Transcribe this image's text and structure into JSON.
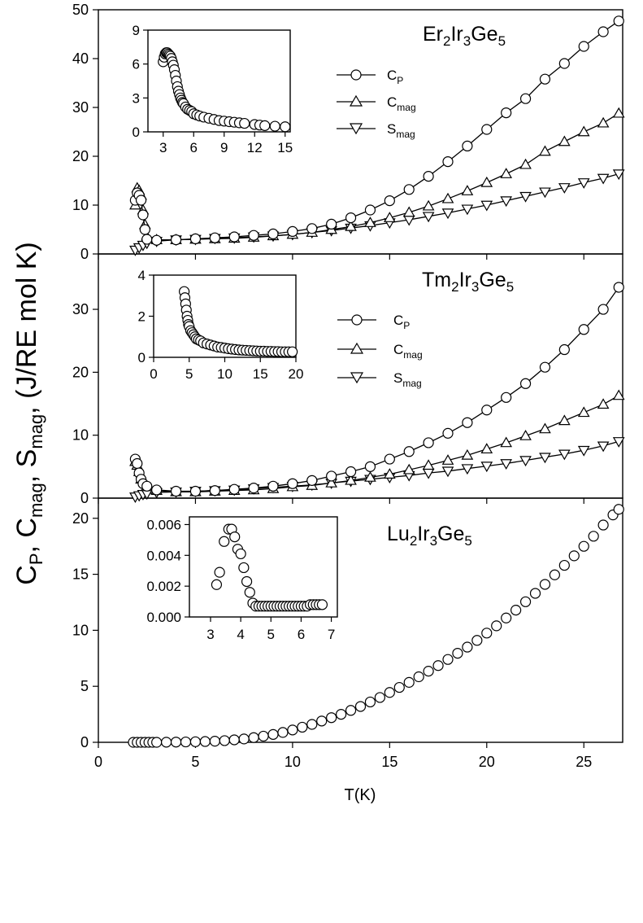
{
  "figure": {
    "y_axis_label": {
      "c": "C",
      "p": "P",
      "sep1": ", ",
      "c2": "C",
      "mag": "mag",
      "sep2": ", ",
      "s": "S",
      "mag2": "mag",
      "units": ", (J/RE mol K)"
    },
    "x_axis_label": "T(K)"
  },
  "legend": {
    "cp": "C",
    "cp_sub": "P",
    "cmag": "C",
    "cmag_sub": "mag",
    "smag": "S",
    "smag_sub": "mag"
  },
  "panels": {
    "er": {
      "title": {
        "a": "Er",
        "b": "2",
        "c": "Ir",
        "d": "3",
        "e": "Ge",
        "f": "5"
      }
    },
    "tm": {
      "title": {
        "a": "Tm",
        "b": "2",
        "c": "Ir",
        "d": "3",
        "e": "Ge",
        "f": "5"
      }
    },
    "lu": {
      "title": {
        "a": "Lu",
        "b": "2",
        "c": "Ir",
        "d": "3",
        "e": "Ge",
        "f": "5"
      }
    }
  },
  "chart_data": [
    {
      "type": "scatter",
      "panel": "Er2Ir3Ge5",
      "xlim": [
        0,
        27
      ],
      "ylim": [
        0,
        50
      ],
      "xticks": [
        0,
        5,
        10,
        15,
        20,
        25
      ],
      "yticks": [
        0,
        10,
        20,
        30,
        40,
        50
      ],
      "series": [
        {
          "name": "CP",
          "marker": "circle",
          "x": [
            1.9,
            2.0,
            2.1,
            2.2,
            2.3,
            2.4,
            2.5,
            3.0,
            4.0,
            5.0,
            6.0,
            7.0,
            8.0,
            9.0,
            10.0,
            11.0,
            12.0,
            13.0,
            14.0,
            15.0,
            16.0,
            17.0,
            18.0,
            19.0,
            20.0,
            21.0,
            22.0,
            23.0,
            24.0,
            25.0,
            26.0,
            26.8
          ],
          "y": [
            11.0,
            12.5,
            12.0,
            11.0,
            8.0,
            5.0,
            3.0,
            2.8,
            2.9,
            3.1,
            3.3,
            3.5,
            3.8,
            4.1,
            4.6,
            5.2,
            6.1,
            7.4,
            9.0,
            10.9,
            13.2,
            15.9,
            18.9,
            22.1,
            25.5,
            28.9,
            31.8,
            35.8,
            39.0,
            42.5,
            45.5,
            47.7
          ]
        },
        {
          "name": "Cmag",
          "marker": "triangle-up",
          "x": [
            1.9,
            2.0,
            2.1,
            2.2,
            2.3,
            2.4,
            2.5,
            3.0,
            4.0,
            5.0,
            6.0,
            7.0,
            8.0,
            9.0,
            10.0,
            11.0,
            12.0,
            13.0,
            14.0,
            15.0,
            16.0,
            17.0,
            18.0,
            19.0,
            20.0,
            21.0,
            22.0,
            23.0,
            24.0,
            25.0,
            26.0,
            26.8
          ],
          "y": [
            10.0,
            13.5,
            13.0,
            12.0,
            9.0,
            6.0,
            3.5,
            2.9,
            2.9,
            3.0,
            3.1,
            3.2,
            3.4,
            3.7,
            4.0,
            4.4,
            5.0,
            5.6,
            6.4,
            7.4,
            8.5,
            9.8,
            11.3,
            12.9,
            14.6,
            16.4,
            18.3,
            21.0,
            23.0,
            25.0,
            26.8,
            28.8
          ]
        },
        {
          "name": "Smag",
          "marker": "triangle-down",
          "x": [
            1.9,
            2.1,
            2.3,
            2.5,
            3.0,
            4.0,
            5.0,
            6.0,
            7.0,
            8.0,
            9.0,
            10.0,
            11.0,
            12.0,
            13.0,
            14.0,
            15.0,
            16.0,
            17.0,
            18.0,
            19.0,
            20.0,
            21.0,
            22.0,
            23.0,
            24.0,
            25.0,
            26.0,
            26.8
          ],
          "y": [
            0.8,
            1.3,
            1.8,
            2.2,
            2.6,
            2.9,
            3.0,
            3.2,
            3.3,
            3.5,
            3.7,
            4.0,
            4.4,
            4.8,
            5.3,
            5.8,
            6.4,
            7.0,
            7.7,
            8.4,
            9.2,
            10.0,
            10.9,
            11.8,
            12.7,
            13.6,
            14.6,
            15.5,
            16.4
          ]
        }
      ],
      "inset": {
        "type": "scatter",
        "xlim": [
          1.5,
          15.5
        ],
        "ylim": [
          0,
          9
        ],
        "xticks": [
          3,
          6,
          9,
          12,
          15
        ],
        "yticks": [
          0,
          3,
          6,
          9
        ],
        "x": [
          3.0,
          3.1,
          3.2,
          3.3,
          3.4,
          3.5,
          3.6,
          3.7,
          3.8,
          3.9,
          4.0,
          4.1,
          4.2,
          4.3,
          4.4,
          4.5,
          4.6,
          4.7,
          4.8,
          4.9,
          5.0,
          5.2,
          5.4,
          5.6,
          5.8,
          6.0,
          6.3,
          6.6,
          7.0,
          7.5,
          8.0,
          8.5,
          9.0,
          9.5,
          10.0,
          10.5,
          11.0,
          12.0,
          12.5,
          13.0,
          14.0,
          15.0
        ],
        "y": [
          6.2,
          6.6,
          6.9,
          7.0,
          7.0,
          6.9,
          6.8,
          6.7,
          6.5,
          6.2,
          5.9,
          5.5,
          5.0,
          4.5,
          4.0,
          3.6,
          3.3,
          3.0,
          2.8,
          2.6,
          2.5,
          2.2,
          2.0,
          1.9,
          1.8,
          1.6,
          1.5,
          1.4,
          1.3,
          1.2,
          1.1,
          1.0,
          0.95,
          0.9,
          0.85,
          0.8,
          0.75,
          0.65,
          0.6,
          0.55,
          0.5,
          0.45
        ]
      }
    },
    {
      "type": "scatter",
      "panel": "Tm2Ir3Ge5",
      "xlim": [
        0,
        27
      ],
      "ylim": [
        0,
        38.8
      ],
      "xticks": [
        0,
        5,
        10,
        15,
        20,
        25
      ],
      "yticks": [
        0,
        10,
        20,
        30
      ],
      "series": [
        {
          "name": "CP",
          "marker": "circle",
          "x": [
            1.9,
            2.0,
            2.1,
            2.2,
            2.3,
            2.5,
            3.0,
            4.0,
            5.0,
            6.0,
            7.0,
            8.0,
            9.0,
            10.0,
            11.0,
            12.0,
            13.0,
            14.0,
            15.0,
            16.0,
            17.0,
            18.0,
            19.0,
            20.0,
            21.0,
            22.0,
            23.0,
            24.0,
            25.0,
            26.0,
            26.8
          ],
          "y": [
            6.2,
            5.5,
            4.0,
            3.0,
            2.3,
            1.9,
            1.3,
            1.1,
            1.1,
            1.2,
            1.4,
            1.6,
            1.9,
            2.3,
            2.8,
            3.5,
            4.2,
            5.0,
            6.2,
            7.4,
            8.8,
            10.3,
            12.0,
            14.0,
            16.0,
            18.2,
            20.8,
            23.6,
            26.8,
            30.0,
            33.5
          ]
        },
        {
          "name": "Cmag",
          "marker": "triangle-up",
          "x": [
            1.9,
            2.0,
            2.1,
            2.2,
            2.5,
            3.0,
            4.0,
            5.0,
            6.0,
            7.0,
            8.0,
            9.0,
            10.0,
            11.0,
            12.0,
            13.0,
            14.0,
            15.0,
            16.0,
            17.0,
            18.0,
            19.0,
            20.0,
            21.0,
            22.0,
            23.0,
            24.0,
            25.0,
            26.0,
            26.8
          ],
          "y": [
            5.8,
            5.2,
            4.2,
            3.0,
            1.8,
            1.2,
            1.0,
            1.0,
            1.1,
            1.2,
            1.3,
            1.5,
            1.8,
            2.0,
            2.4,
            2.8,
            3.3,
            3.8,
            4.5,
            5.2,
            6.0,
            6.8,
            7.8,
            8.8,
            9.9,
            11.0,
            12.3,
            13.6,
            14.9,
            16.3
          ]
        },
        {
          "name": "Smag",
          "marker": "triangle-down",
          "x": [
            1.9,
            2.1,
            2.3,
            2.5,
            3.0,
            4.0,
            5.0,
            6.0,
            7.0,
            8.0,
            9.0,
            10.0,
            11.0,
            12.0,
            13.0,
            14.0,
            15.0,
            16.0,
            17.0,
            18.0,
            19.0,
            20.0,
            21.0,
            22.0,
            23.0,
            24.0,
            25.0,
            26.0,
            26.8
          ],
          "y": [
            0.2,
            0.4,
            0.6,
            0.7,
            0.9,
            1.0,
            1.1,
            1.2,
            1.3,
            1.5,
            1.7,
            1.9,
            2.1,
            2.4,
            2.7,
            3.0,
            3.3,
            3.6,
            4.0,
            4.3,
            4.7,
            5.1,
            5.5,
            6.0,
            6.5,
            7.0,
            7.6,
            8.3,
            9.0
          ]
        }
      ],
      "inset": {
        "type": "scatter",
        "xlim": [
          0,
          20
        ],
        "ylim": [
          0,
          4
        ],
        "xticks": [
          0,
          5,
          10,
          15,
          20
        ],
        "yticks": [
          0,
          2,
          4
        ],
        "x": [
          4.3,
          4.4,
          4.5,
          4.6,
          4.7,
          4.8,
          4.9,
          5.0,
          5.2,
          5.4,
          5.6,
          5.8,
          6.0,
          6.3,
          6.6,
          7.0,
          7.5,
          8.0,
          8.5,
          9.0,
          9.5,
          10.0,
          10.5,
          11.0,
          11.5,
          12.0,
          12.5,
          13.0,
          13.5,
          14.0,
          14.5,
          15.0,
          15.5,
          16.0,
          16.5,
          17.0,
          17.5,
          18.0,
          18.5,
          19.0,
          19.5
        ],
        "y": [
          3.2,
          2.9,
          2.6,
          2.3,
          2.0,
          1.8,
          1.6,
          1.5,
          1.3,
          1.2,
          1.1,
          1.0,
          0.9,
          0.85,
          0.8,
          0.7,
          0.65,
          0.6,
          0.55,
          0.5,
          0.48,
          0.45,
          0.42,
          0.4,
          0.38,
          0.36,
          0.35,
          0.34,
          0.33,
          0.32,
          0.31,
          0.3,
          0.3,
          0.29,
          0.29,
          0.28,
          0.28,
          0.27,
          0.27,
          0.27,
          0.27
        ]
      }
    },
    {
      "type": "scatter",
      "panel": "Lu2Ir3Ge5",
      "xlim": [
        0,
        27
      ],
      "ylim": [
        0,
        21.8
      ],
      "xticks": [
        0,
        5,
        10,
        15,
        20,
        25
      ],
      "yticks": [
        0,
        5,
        10,
        15,
        20
      ],
      "series": [
        {
          "name": "CP",
          "marker": "circle",
          "x": [
            1.8,
            2.0,
            2.2,
            2.4,
            2.6,
            2.8,
            3.0,
            3.5,
            4.0,
            4.5,
            5.0,
            5.5,
            6.0,
            6.5,
            7.0,
            7.5,
            8.0,
            8.5,
            9.0,
            9.5,
            10.0,
            10.5,
            11.0,
            11.5,
            12.0,
            12.5,
            13.0,
            13.5,
            14.0,
            14.5,
            15.0,
            15.5,
            16.0,
            16.5,
            17.0,
            17.5,
            18.0,
            18.5,
            19.0,
            19.5,
            20.0,
            20.5,
            21.0,
            21.5,
            22.0,
            22.5,
            23.0,
            23.5,
            24.0,
            24.5,
            25.0,
            25.5,
            26.0,
            26.5,
            26.8
          ],
          "y": [
            0.0,
            0.0,
            0.0,
            0.0,
            0.0,
            0.0,
            0.0,
            0.01,
            0.02,
            0.03,
            0.05,
            0.07,
            0.1,
            0.15,
            0.22,
            0.3,
            0.42,
            0.55,
            0.7,
            0.88,
            1.1,
            1.35,
            1.6,
            1.9,
            2.2,
            2.5,
            2.85,
            3.2,
            3.6,
            4.0,
            4.45,
            4.9,
            5.35,
            5.85,
            6.35,
            6.85,
            7.4,
            7.95,
            8.5,
            9.1,
            9.75,
            10.4,
            11.1,
            11.8,
            12.55,
            13.3,
            14.1,
            14.95,
            15.8,
            16.65,
            17.5,
            18.4,
            19.4,
            20.3,
            20.8
          ]
        }
      ],
      "inset": {
        "type": "scatter",
        "xlim": [
          2.3,
          7.2
        ],
        "ylim": [
          0,
          0.0065
        ],
        "xticks": [
          3,
          4,
          5,
          6,
          7
        ],
        "yticks": [
          0.0,
          0.002,
          0.004,
          0.006
        ],
        "ytick_labels": [
          "0.000",
          "0.002",
          "0.004",
          "0.006"
        ],
        "x": [
          3.2,
          3.3,
          3.45,
          3.6,
          3.7,
          3.8,
          3.9,
          4.0,
          4.1,
          4.2,
          4.3,
          4.4,
          4.5,
          4.6,
          4.7,
          4.8,
          4.9,
          5.0,
          5.1,
          5.2,
          5.3,
          5.4,
          5.5,
          5.6,
          5.7,
          5.8,
          5.9,
          6.0,
          6.1,
          6.2,
          6.3,
          6.4,
          6.5,
          6.6,
          6.7
        ],
        "y": [
          0.0021,
          0.0029,
          0.0049,
          0.0057,
          0.0057,
          0.0052,
          0.0044,
          0.0041,
          0.0032,
          0.0023,
          0.0016,
          0.0009,
          0.0007,
          0.0007,
          0.0007,
          0.0007,
          0.0007,
          0.0007,
          0.0007,
          0.0007,
          0.0007,
          0.0007,
          0.0007,
          0.0007,
          0.0007,
          0.0007,
          0.0007,
          0.0007,
          0.0007,
          0.0007,
          0.0008,
          0.0008,
          0.0008,
          0.0008,
          0.0008
        ]
      }
    }
  ]
}
